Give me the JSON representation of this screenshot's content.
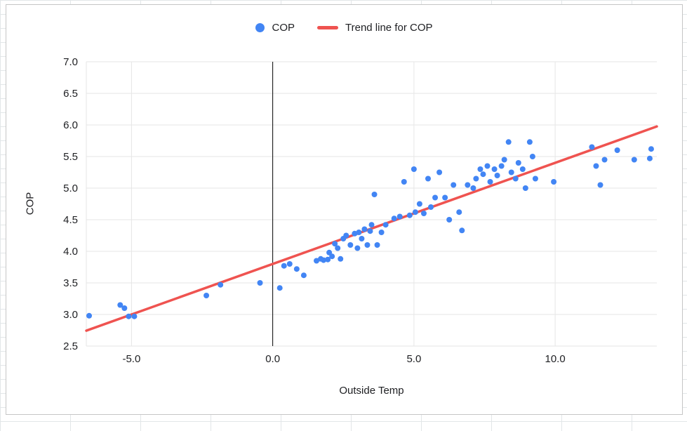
{
  "chart": {
    "colors": {
      "point": "#4285F4",
      "trend": "#EF5350",
      "grid": "#e6e6e6",
      "zero_line": "#000000",
      "text": "#202124",
      "card_border": "#c6c6c6",
      "sheet_grid": "#e2e6e8"
    }
  },
  "chart_data": {
    "type": "scatter",
    "title": "",
    "xlabel": "Outside Temp",
    "ylabel": "COP",
    "xlim": [
      -6.6,
      13.6
    ],
    "ylim": [
      2.5,
      7.0
    ],
    "x_ticks": [
      -5.0,
      0.0,
      5.0,
      10.0
    ],
    "x_tick_labels": [
      "-5.0",
      "0.0",
      "5.0",
      "10.0"
    ],
    "y_ticks": [
      2.5,
      3.0,
      3.5,
      4.0,
      4.5,
      5.0,
      5.5,
      6.0,
      6.5,
      7.0
    ],
    "y_tick_labels": [
      "2.5",
      "3.0",
      "3.5",
      "4.0",
      "4.5",
      "5.0",
      "5.5",
      "6.0",
      "6.5",
      "7.0"
    ],
    "grid": true,
    "zero_line_x": 0,
    "legend_position": "top",
    "series": [
      {
        "name": "COP",
        "type": "scatter",
        "color": "#4285F4",
        "points": [
          [
            -6.5,
            2.98
          ],
          [
            -5.4,
            3.15
          ],
          [
            -5.25,
            3.1
          ],
          [
            -5.1,
            2.97
          ],
          [
            -4.9,
            2.97
          ],
          [
            -2.35,
            3.3
          ],
          [
            -1.85,
            3.47
          ],
          [
            -0.45,
            3.5
          ],
          [
            0.25,
            3.42
          ],
          [
            0.4,
            3.77
          ],
          [
            0.6,
            3.8
          ],
          [
            0.85,
            3.72
          ],
          [
            1.1,
            3.62
          ],
          [
            1.55,
            3.85
          ],
          [
            1.7,
            3.88
          ],
          [
            1.8,
            3.86
          ],
          [
            1.95,
            3.87
          ],
          [
            2.0,
            3.98
          ],
          [
            2.1,
            3.92
          ],
          [
            2.2,
            4.12
          ],
          [
            2.3,
            4.05
          ],
          [
            2.4,
            3.88
          ],
          [
            2.5,
            4.2
          ],
          [
            2.6,
            4.25
          ],
          [
            2.75,
            4.1
          ],
          [
            2.9,
            4.28
          ],
          [
            3.0,
            4.05
          ],
          [
            3.05,
            4.3
          ],
          [
            3.15,
            4.2
          ],
          [
            3.25,
            4.35
          ],
          [
            3.35,
            4.1
          ],
          [
            3.45,
            4.32
          ],
          [
            3.5,
            4.42
          ],
          [
            3.6,
            4.9
          ],
          [
            3.7,
            4.1
          ],
          [
            3.85,
            4.3
          ],
          [
            4.0,
            4.42
          ],
          [
            4.3,
            4.52
          ],
          [
            4.5,
            4.55
          ],
          [
            4.65,
            5.1
          ],
          [
            4.85,
            4.57
          ],
          [
            5.0,
            5.3
          ],
          [
            5.05,
            4.62
          ],
          [
            5.2,
            4.75
          ],
          [
            5.35,
            4.6
          ],
          [
            5.5,
            5.15
          ],
          [
            5.6,
            4.7
          ],
          [
            5.75,
            4.85
          ],
          [
            5.9,
            5.25
          ],
          [
            6.1,
            4.85
          ],
          [
            6.25,
            4.5
          ],
          [
            6.4,
            5.05
          ],
          [
            6.6,
            4.62
          ],
          [
            6.7,
            4.33
          ],
          [
            6.9,
            5.05
          ],
          [
            7.1,
            5.0
          ],
          [
            7.2,
            5.15
          ],
          [
            7.35,
            5.3
          ],
          [
            7.45,
            5.22
          ],
          [
            7.6,
            5.35
          ],
          [
            7.7,
            5.1
          ],
          [
            7.85,
            5.3
          ],
          [
            7.95,
            5.2
          ],
          [
            8.1,
            5.35
          ],
          [
            8.2,
            5.45
          ],
          [
            8.35,
            5.73
          ],
          [
            8.45,
            5.25
          ],
          [
            8.6,
            5.15
          ],
          [
            8.7,
            5.4
          ],
          [
            8.85,
            5.3
          ],
          [
            8.95,
            5.0
          ],
          [
            9.1,
            5.73
          ],
          [
            9.2,
            5.5
          ],
          [
            9.3,
            5.15
          ],
          [
            9.95,
            5.1
          ],
          [
            11.3,
            5.65
          ],
          [
            11.45,
            5.35
          ],
          [
            11.6,
            5.05
          ],
          [
            11.75,
            5.45
          ],
          [
            12.2,
            5.6
          ],
          [
            12.8,
            5.45
          ],
          [
            13.35,
            5.47
          ],
          [
            13.4,
            5.62
          ]
        ]
      },
      {
        "name": "Trend line for COP",
        "type": "line",
        "color": "#EF5350",
        "trend": {
          "slope": 0.16,
          "intercept": 3.8
        }
      }
    ]
  }
}
